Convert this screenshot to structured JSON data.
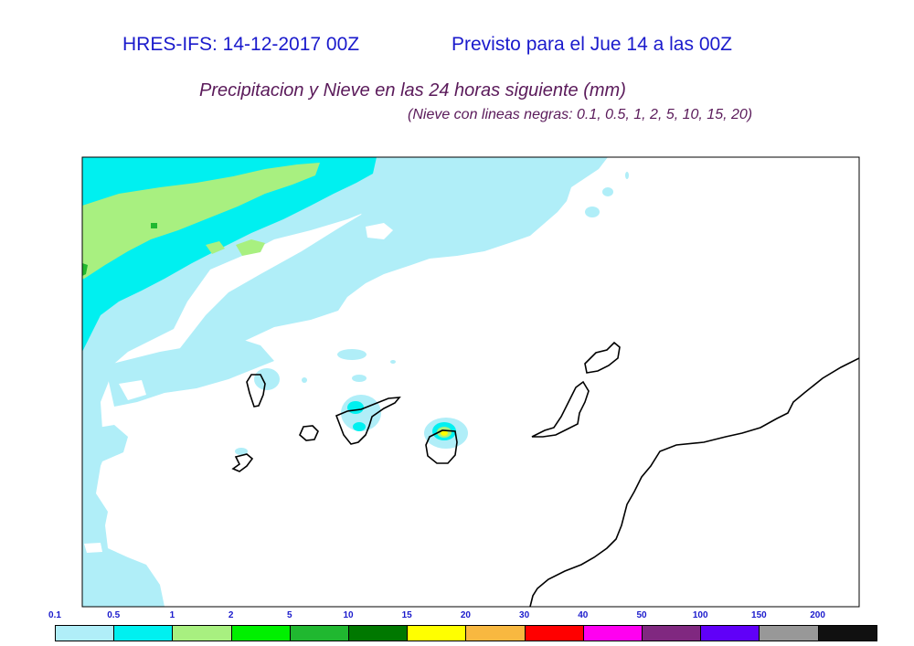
{
  "header": {
    "model_run": "HRES-IFS: 14-12-2017 00Z",
    "forecast_for": "Previsto para el  Jue 14 a las 00Z",
    "title": "Precipitacion y Nieve en las 24 horas siguiente (mm)",
    "subtitle": "(Nieve con lineas negras: 0.1, 0.5, 1, 2, 5, 10, 15, 20)"
  },
  "colorbar": {
    "labels": [
      "0.1",
      "0.5",
      "1",
      "2",
      "5",
      "10",
      "15",
      "20",
      "30",
      "40",
      "50",
      "100",
      "150",
      "200"
    ],
    "colors": [
      "#b0eef8",
      "#00f0f0",
      "#a8f080",
      "#00f000",
      "#20b830",
      "#007800",
      "#ffff00",
      "#f8b840",
      "#ff0000",
      "#ff00f0",
      "#802880",
      "#6000f8",
      "#989898",
      "#101010"
    ]
  },
  "map": {
    "precip_colors": {
      "light": "#b0eef8",
      "moderate": "#00f0f0",
      "heavy": "#a8f080",
      "very_heavy": "#20b830",
      "intense": "#ffff00"
    }
  }
}
